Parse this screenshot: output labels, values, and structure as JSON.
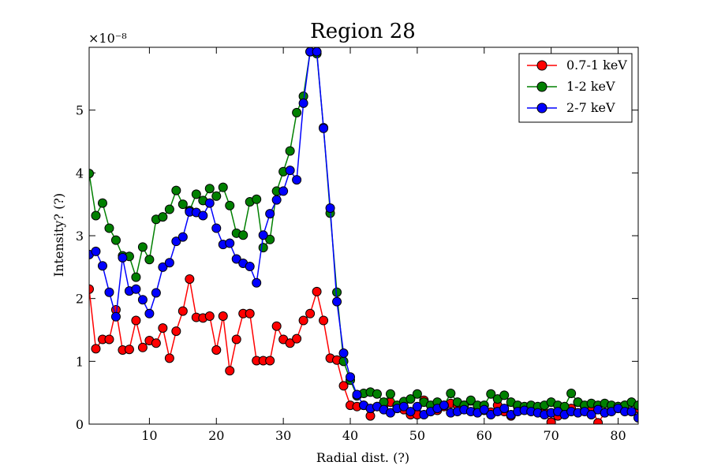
{
  "chart_data": {
    "type": "line",
    "title": "Region 28",
    "xlabel": "Radial dist. (?)",
    "ylabel": "Intensity? (?)",
    "y_scale_label": "×10⁻⁸",
    "xlim": [
      1,
      83
    ],
    "ylim": [
      0,
      6
    ],
    "xticks": [
      10,
      20,
      30,
      40,
      50,
      60,
      70,
      80
    ],
    "yticks": [
      0,
      1,
      2,
      3,
      4,
      5
    ],
    "legend_position": "top-right",
    "grid": false,
    "marker": "circle",
    "x": [
      1,
      2,
      3,
      4,
      5,
      6,
      7,
      8,
      9,
      10,
      11,
      12,
      13,
      14,
      15,
      16,
      17,
      18,
      19,
      20,
      21,
      22,
      23,
      24,
      25,
      26,
      27,
      28,
      29,
      30,
      31,
      32,
      33,
      34,
      35,
      36,
      37,
      38,
      39,
      40,
      41,
      42,
      43,
      44,
      45,
      46,
      47,
      48,
      49,
      50,
      51,
      52,
      53,
      54,
      55,
      56,
      57,
      58,
      59,
      60,
      61,
      62,
      63,
      64,
      65,
      66,
      67,
      68,
      69,
      70,
      71,
      72,
      73,
      74,
      75,
      76,
      77,
      78,
      79,
      80,
      81,
      82,
      83
    ],
    "series": [
      {
        "name": "0.7-1 keV",
        "color": "#ff0000",
        "values": [
          2.15,
          1.2,
          1.35,
          1.35,
          1.82,
          1.18,
          1.19,
          1.65,
          1.22,
          1.33,
          1.29,
          1.53,
          1.05,
          1.48,
          1.8,
          2.31,
          1.7,
          1.69,
          1.72,
          1.18,
          1.72,
          0.85,
          1.35,
          1.76,
          1.76,
          1.01,
          1.01,
          1.01,
          1.56,
          1.35,
          1.29,
          1.36,
          1.65,
          1.76,
          2.11,
          1.65,
          1.05,
          1.02,
          0.61,
          0.3,
          0.28,
          0.3,
          0.13,
          0.28,
          0.3,
          0.35,
          0.26,
          0.23,
          0.15,
          0.15,
          0.38,
          0.2,
          0.22,
          0.28,
          0.33,
          0.3,
          0.3,
          0.37,
          0.2,
          0.22,
          0.19,
          0.3,
          0.2,
          0.13,
          0.28,
          0.26,
          0.25,
          0.2,
          0.18,
          0.03,
          0.13,
          0.18,
          0.25,
          0.35,
          0.28,
          0.28,
          0.02,
          0.18,
          0.22,
          0.28,
          0.3,
          0.2,
          0.25
        ]
      },
      {
        "name": "1-2 keV",
        "color": "#008000",
        "values": [
          3.99,
          3.32,
          3.52,
          3.12,
          2.93,
          2.68,
          2.67,
          2.34,
          2.82,
          2.62,
          3.26,
          3.3,
          3.42,
          3.72,
          3.5,
          3.4,
          3.66,
          3.56,
          3.75,
          3.63,
          3.77,
          3.48,
          3.04,
          3.01,
          3.54,
          3.58,
          2.81,
          2.94,
          3.71,
          4.02,
          4.35,
          4.96,
          5.22,
          5.93,
          5.9,
          4.72,
          3.36,
          2.1,
          1.0,
          0.7,
          0.45,
          0.49,
          0.51,
          0.48,
          0.35,
          0.48,
          0.3,
          0.36,
          0.4,
          0.48,
          0.35,
          0.3,
          0.35,
          0.3,
          0.49,
          0.35,
          0.3,
          0.38,
          0.3,
          0.3,
          0.48,
          0.4,
          0.46,
          0.35,
          0.3,
          0.28,
          0.3,
          0.28,
          0.3,
          0.35,
          0.3,
          0.28,
          0.49,
          0.35,
          0.3,
          0.33,
          0.3,
          0.33,
          0.3,
          0.28,
          0.3,
          0.35,
          0.3
        ]
      },
      {
        "name": "2-7 keV",
        "color": "#0000ff",
        "values": [
          2.7,
          2.75,
          2.52,
          2.1,
          1.71,
          2.65,
          2.12,
          2.15,
          1.98,
          1.76,
          2.09,
          2.5,
          2.57,
          2.91,
          2.98,
          3.38,
          3.37,
          3.32,
          3.52,
          3.12,
          2.86,
          2.88,
          2.63,
          2.56,
          2.51,
          2.25,
          3.01,
          3.35,
          3.57,
          3.71,
          4.04,
          3.89,
          5.11,
          5.93,
          5.93,
          4.71,
          3.44,
          1.95,
          1.13,
          0.75,
          0.47,
          0.3,
          0.25,
          0.28,
          0.23,
          0.18,
          0.25,
          0.28,
          0.2,
          0.28,
          0.15,
          0.2,
          0.25,
          0.3,
          0.18,
          0.2,
          0.23,
          0.2,
          0.18,
          0.23,
          0.15,
          0.2,
          0.25,
          0.15,
          0.2,
          0.22,
          0.2,
          0.18,
          0.15,
          0.18,
          0.2,
          0.15,
          0.2,
          0.18,
          0.2,
          0.15,
          0.23,
          0.18,
          0.2,
          0.25,
          0.2,
          0.2,
          0.1
        ]
      }
    ]
  }
}
